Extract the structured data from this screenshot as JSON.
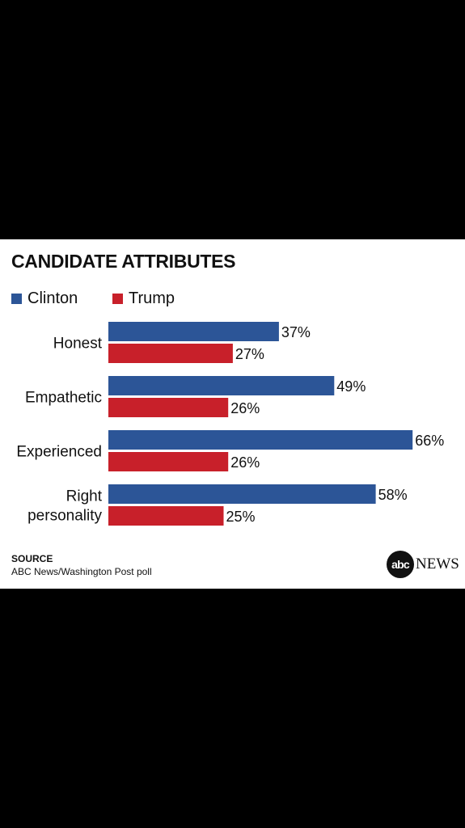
{
  "chart_data": {
    "type": "bar",
    "orientation": "horizontal",
    "title": "CANDIDATE ATTRIBUTES",
    "categories": [
      [
        "Honest"
      ],
      [
        "Empathetic"
      ],
      [
        "Experienced"
      ],
      [
        "Right",
        "personality"
      ]
    ],
    "series": [
      {
        "name": "Clinton",
        "color": "#2c5597",
        "values": [
          37,
          49,
          66,
          58
        ],
        "labels": [
          "37%",
          "49%",
          "66%",
          "58%"
        ]
      },
      {
        "name": "Trump",
        "color": "#c8202a",
        "values": [
          27,
          26,
          26,
          25
        ],
        "labels": [
          "27%",
          "26%",
          "26%",
          "25%"
        ]
      }
    ],
    "xlim": [
      0,
      100
    ],
    "grid": false,
    "legend_position": "top-left"
  },
  "source": {
    "label": "SOURCE",
    "text": "ABC News/Washington Post poll"
  },
  "logo": {
    "circle_text": "abc",
    "word": "NEWS"
  }
}
